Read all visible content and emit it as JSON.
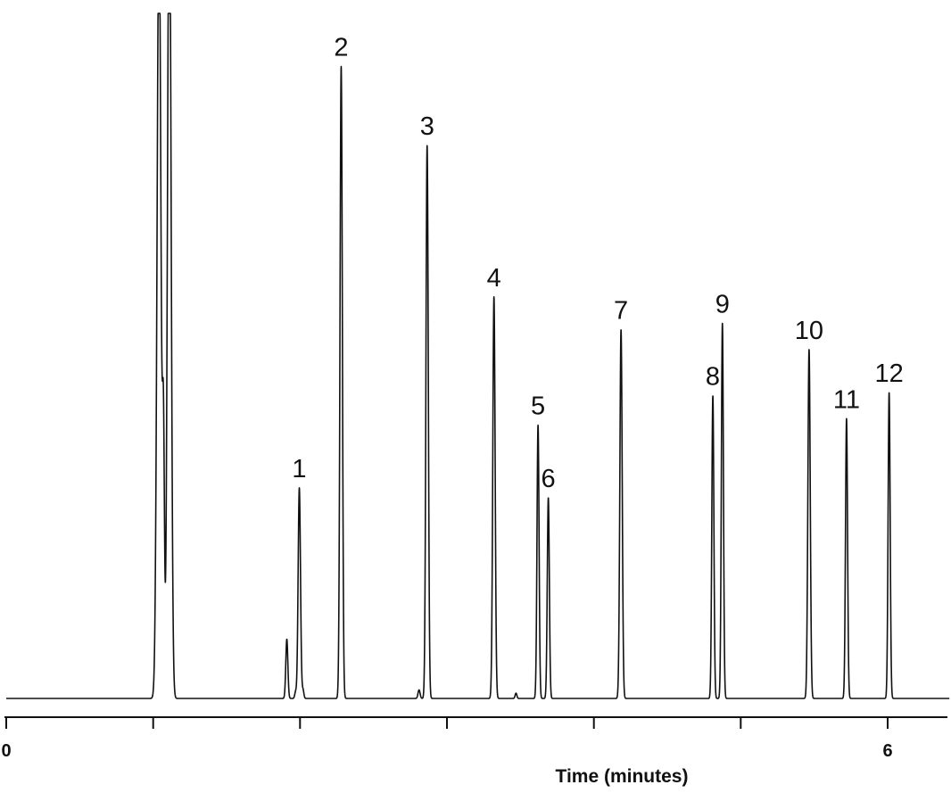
{
  "chart_data": {
    "type": "line",
    "title": "",
    "xlabel": "Time (minutes)",
    "ylabel": "",
    "xlim": [
      0,
      6.4
    ],
    "ylim": [
      0,
      100
    ],
    "grid": false,
    "x_ticks": [
      0,
      1,
      2,
      3,
      4,
      5,
      6
    ],
    "x_tick_labels": [
      "0",
      "",
      "",
      "",
      "",
      "",
      "6"
    ],
    "peaks": [
      {
        "label": "",
        "x": 1.04,
        "height": 120,
        "width": 0.013
      },
      {
        "label": "",
        "x": 1.07,
        "height": 38,
        "width": 0.007
      },
      {
        "label": "",
        "x": 1.11,
        "height": 130,
        "width": 0.012
      },
      {
        "label": "",
        "x": 1.91,
        "height": 9,
        "width": 0.007
      },
      {
        "label": "",
        "x": 1.97,
        "height": 1,
        "width": 0.006
      },
      {
        "label": "",
        "x": 2.02,
        "height": 1.3,
        "width": 0.006
      },
      {
        "label": "1",
        "x": 1.995,
        "height": 32,
        "width": 0.008
      },
      {
        "label": "2",
        "x": 2.28,
        "height": 96,
        "width": 0.008
      },
      {
        "label": "",
        "x": 2.81,
        "height": 1.3,
        "width": 0.007
      },
      {
        "label": "3",
        "x": 2.865,
        "height": 84,
        "width": 0.008
      },
      {
        "label": "4",
        "x": 3.32,
        "height": 61,
        "width": 0.008
      },
      {
        "label": "",
        "x": 3.47,
        "height": 0.8,
        "width": 0.006
      },
      {
        "label": "5",
        "x": 3.62,
        "height": 41.5,
        "width": 0.007
      },
      {
        "label": "6",
        "x": 3.69,
        "height": 30.5,
        "width": 0.007
      },
      {
        "label": "7",
        "x": 4.185,
        "height": 56,
        "width": 0.008
      },
      {
        "label": "8",
        "x": 4.81,
        "height": 46,
        "width": 0.007
      },
      {
        "label": "9",
        "x": 4.875,
        "height": 57,
        "width": 0.007
      },
      {
        "label": "10",
        "x": 5.465,
        "height": 53,
        "width": 0.008
      },
      {
        "label": "11",
        "x": 5.72,
        "height": 42.5,
        "width": 0.007
      },
      {
        "label": "12",
        "x": 6.01,
        "height": 46.5,
        "width": 0.007
      }
    ]
  }
}
